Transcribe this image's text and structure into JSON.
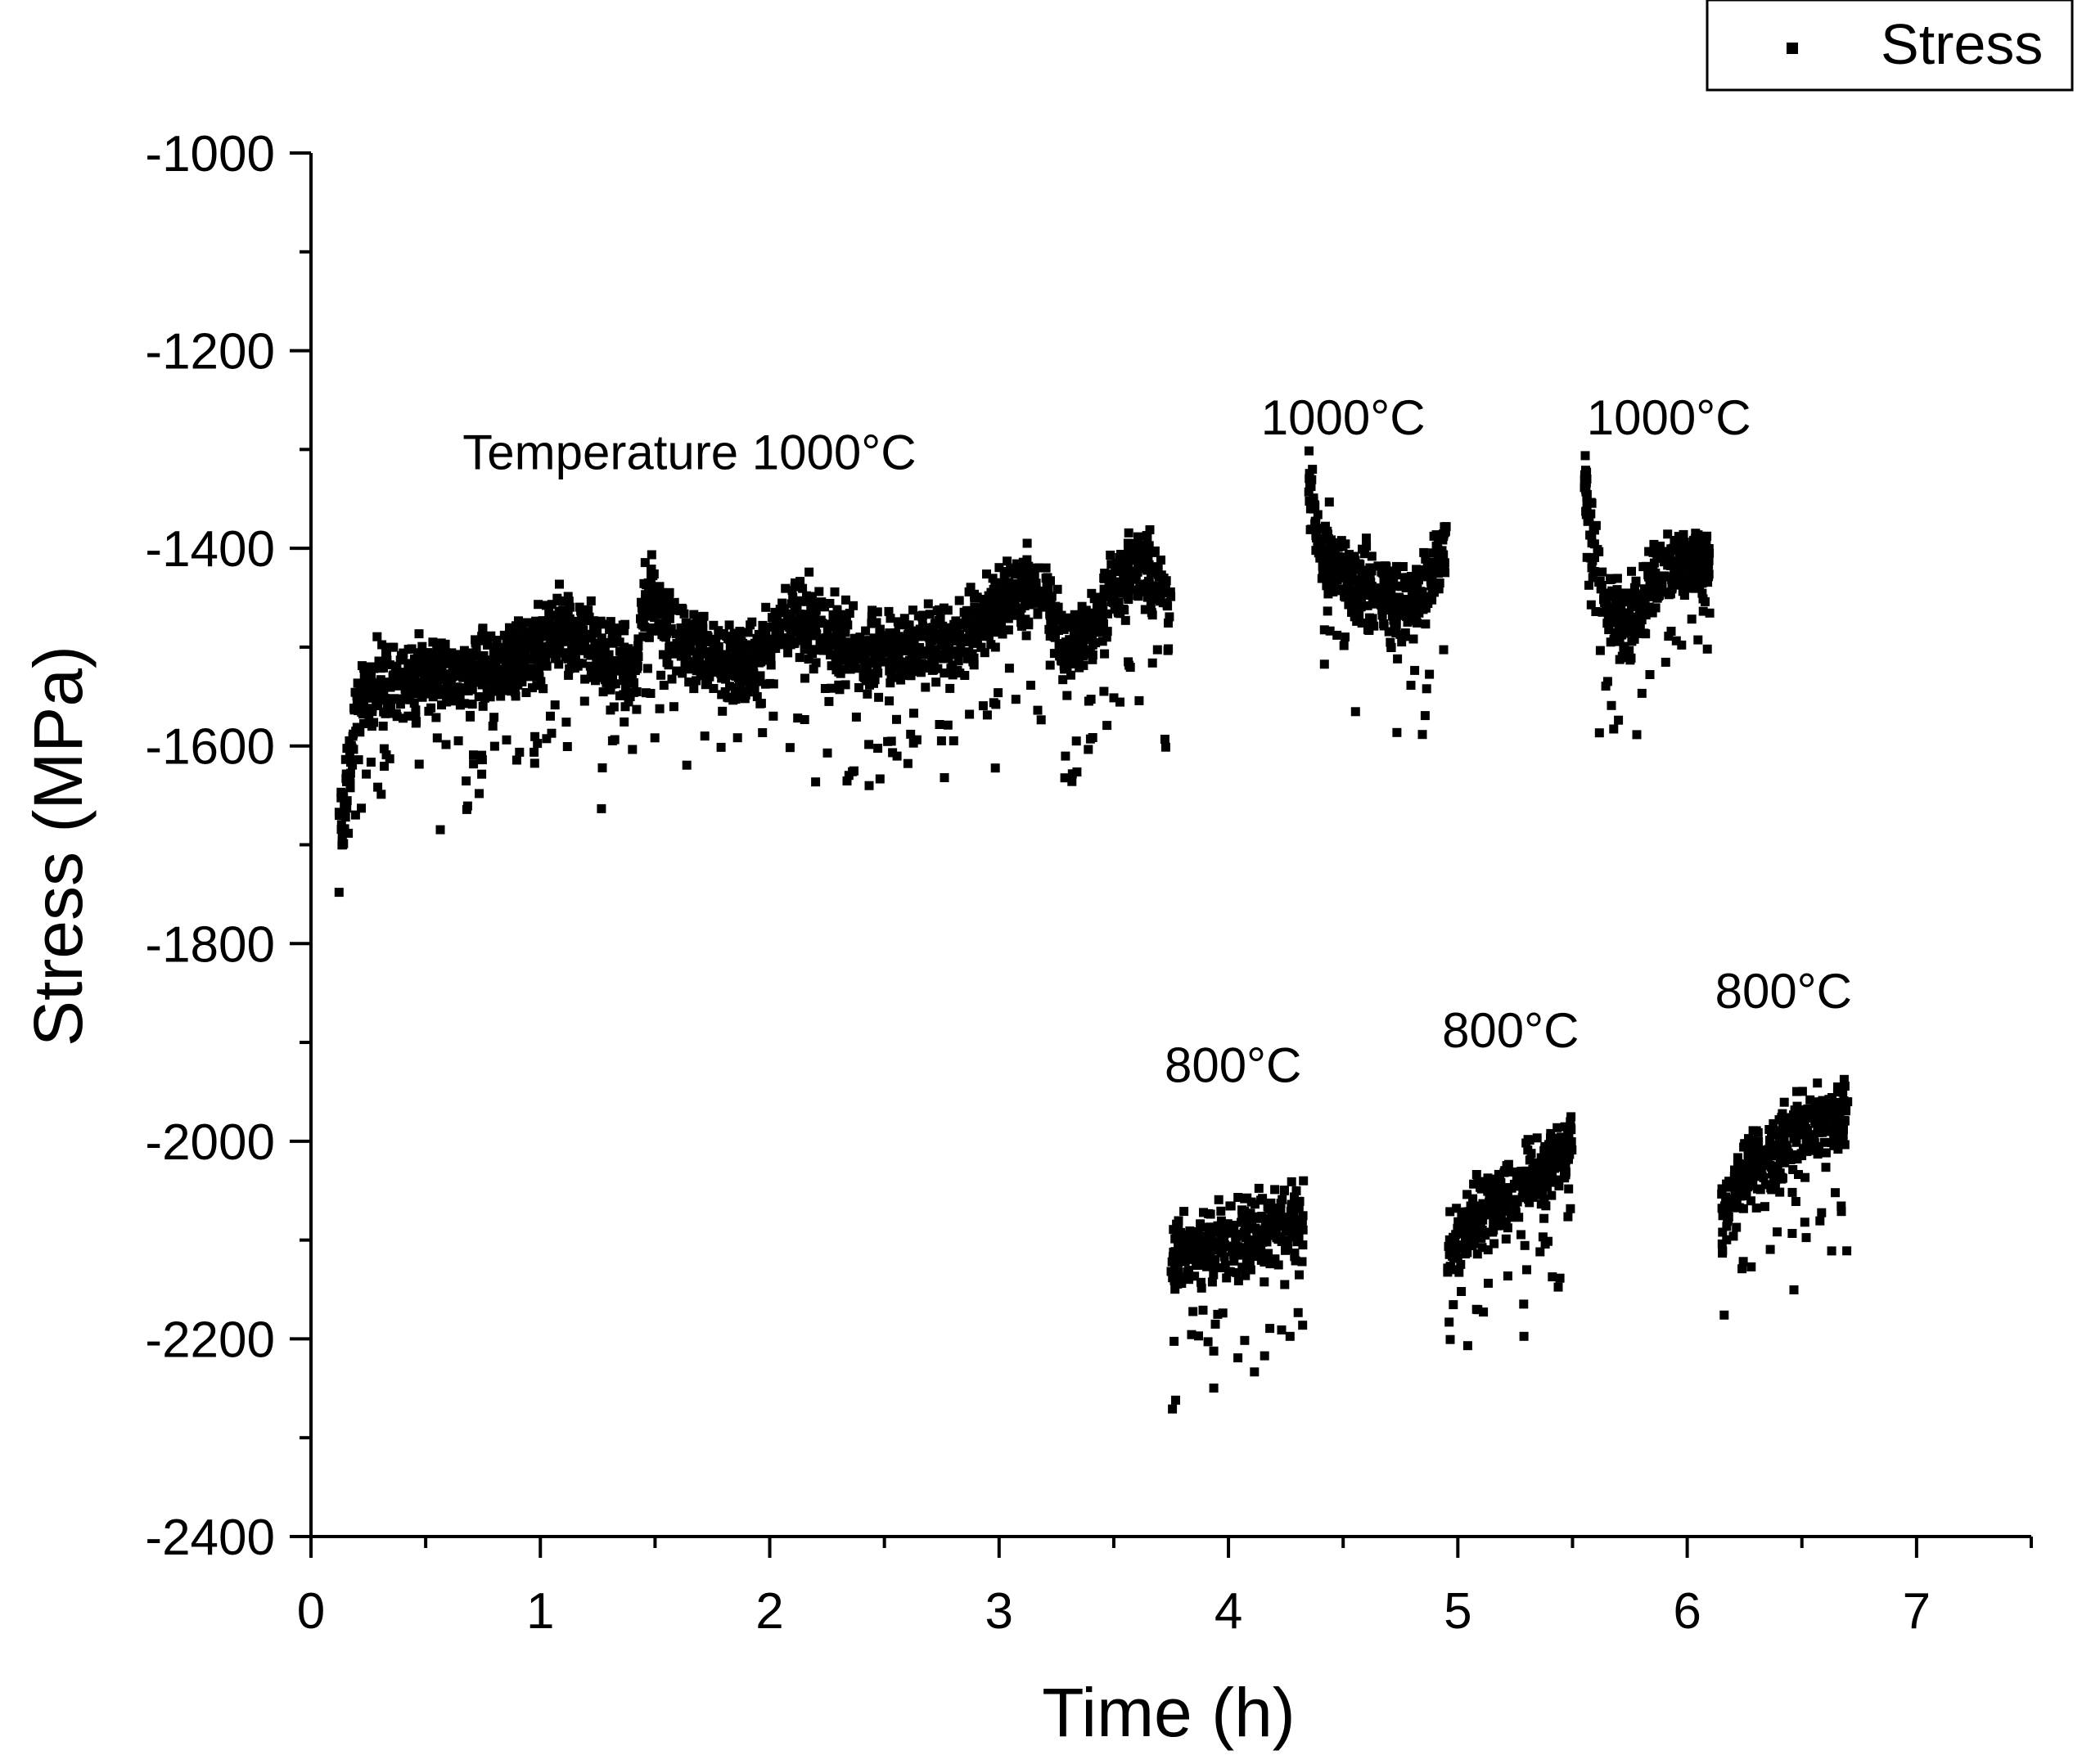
{
  "chart_data": {
    "type": "scatter",
    "title": "",
    "xlabel": "Time (h)",
    "ylabel": "Stress (MPa)",
    "xlim": [
      0,
      7.5
    ],
    "ylim": [
      -2400,
      -1000
    ],
    "xticks": [
      0,
      1,
      2,
      3,
      4,
      5,
      6,
      7
    ],
    "xtick_labels": [
      "0",
      "1",
      "2",
      "3",
      "4",
      "5",
      "6",
      "7"
    ],
    "yticks": [
      -2400,
      -2200,
      -2000,
      -1800,
      -1600,
      -1400,
      -1200,
      -1000
    ],
    "ytick_labels": [
      "-2400",
      "-2200",
      "-2000",
      "-1800",
      "-1600",
      "-1400",
      "-1200",
      "-1000"
    ],
    "grid": false,
    "legend": {
      "position": "top-right",
      "entries": [
        "Stress"
      ]
    },
    "series": [
      {
        "name": "Stress",
        "marker": "square",
        "color": "#000000",
        "segments": [
          {
            "label": "Temperature 1000°C",
            "x": [
              0.12,
              0.2,
              0.3,
              0.5,
              0.7,
              0.9,
              1.0,
              1.1,
              1.3,
              1.42,
              1.45,
              1.6,
              1.8,
              1.95,
              2.05,
              2.2,
              2.4,
              2.6,
              2.8,
              2.95,
              3.05,
              3.2,
              3.3,
              3.45,
              3.6,
              3.75
            ],
            "y": [
              -1700,
              -1560,
              -1540,
              -1530,
              -1525,
              -1510,
              -1500,
              -1480,
              -1510,
              -1530,
              -1440,
              -1490,
              -1515,
              -1520,
              -1470,
              -1480,
              -1510,
              -1500,
              -1500,
              -1470,
              -1440,
              -1445,
              -1505,
              -1460,
              -1410,
              -1460
            ]
          },
          {
            "label": "800°C",
            "x": [
              3.75,
              3.9,
              4.05,
              4.2,
              4.33
            ],
            "y": [
              -2120,
              -2110,
              -2095,
              -2085,
              -2080
            ]
          },
          {
            "label": "1000°C",
            "x": [
              4.35,
              4.4,
              4.5,
              4.6,
              4.7,
              4.8,
              4.9,
              4.95
            ],
            "y": [
              -1330,
              -1400,
              -1425,
              -1435,
              -1450,
              -1455,
              -1425,
              -1400
            ]
          },
          {
            "label": "800°C",
            "x": [
              4.95,
              5.05,
              5.2,
              5.35,
              5.5
            ],
            "y": [
              -2110,
              -2080,
              -2055,
              -2030,
              -2005
            ]
          },
          {
            "label": "1000°C",
            "x": [
              5.55,
              5.6,
              5.7,
              5.8,
              5.9,
              6.0,
              6.1
            ],
            "y": [
              -1330,
              -1420,
              -1480,
              -1460,
              -1420,
              -1410,
              -1420
            ]
          },
          {
            "label": "800°C",
            "x": [
              6.15,
              6.25,
              6.4,
              6.55,
              6.7
            ],
            "y": [
              -2080,
              -2030,
              -2005,
              -1985,
              -1970
            ]
          }
        ]
      }
    ],
    "annotations": [
      {
        "text": "Temperature 1000°C",
        "x": 1.65,
        "y": -1320
      },
      {
        "text": "1000°C",
        "x": 4.5,
        "y": -1285
      },
      {
        "text": "1000°C",
        "x": 5.92,
        "y": -1285
      },
      {
        "text": "800°C",
        "x": 4.02,
        "y": -1940
      },
      {
        "text": "800°C",
        "x": 5.23,
        "y": -1905
      },
      {
        "text": "800°C",
        "x": 6.42,
        "y": -1865
      }
    ]
  }
}
